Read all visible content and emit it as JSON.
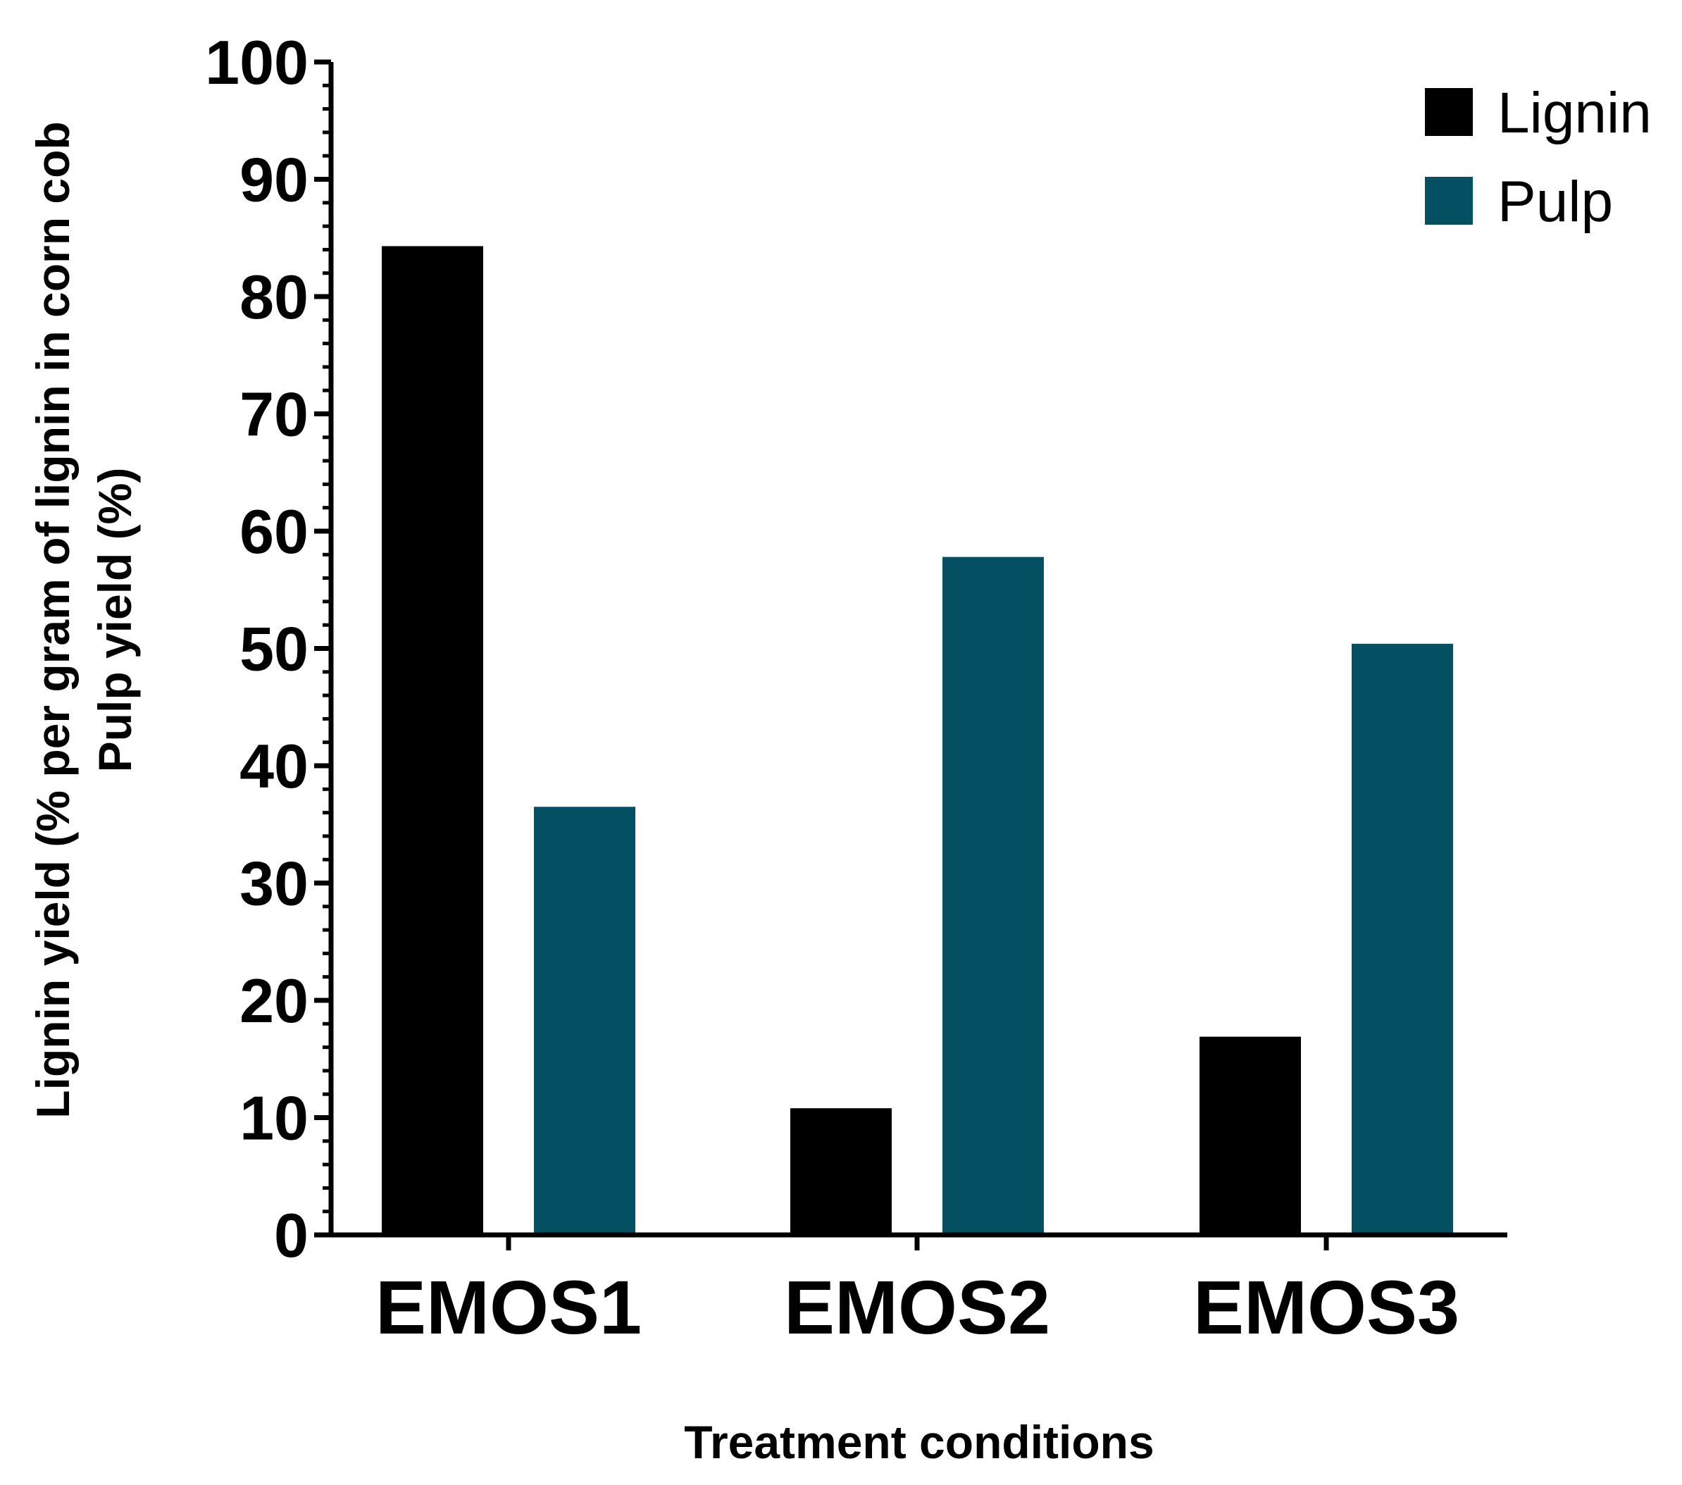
{
  "chart_data": {
    "type": "bar",
    "categories": [
      "EMOS1",
      "EMOS2",
      "EMOS3"
    ],
    "series": [
      {
        "name": "Lignin",
        "color": "#000000",
        "values": [
          84.3,
          10.8,
          16.9
        ]
      },
      {
        "name": "Pulp",
        "color": "#054f63",
        "values": [
          36.5,
          57.8,
          50.4
        ]
      }
    ],
    "xlabel": "Treatment conditions",
    "ylabel_lines": [
      "Lignin yield (% per gram of lignin in corn cob",
      "Pulp yield (%)"
    ],
    "ylim": [
      0,
      100
    ],
    "yticks": [
      0,
      10,
      20,
      30,
      40,
      50,
      60,
      70,
      80,
      90,
      100
    ],
    "grid": false,
    "legend_position": "top-right"
  }
}
